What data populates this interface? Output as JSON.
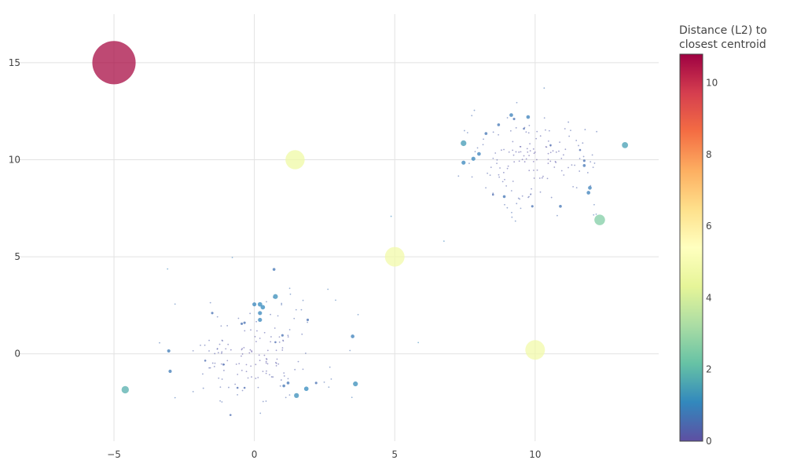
{
  "chart_data": {
    "type": "scatter",
    "title": "",
    "xlabel": "",
    "ylabel": "",
    "xlim": [
      -8.5,
      14.4
    ],
    "ylim": [
      -4.5,
      17.5
    ],
    "x_ticks": [
      -5,
      0,
      5,
      10
    ],
    "x_tick_labels": [
      "−5",
      "0",
      "5",
      "10"
    ],
    "y_ticks": [
      0,
      5,
      10,
      15
    ],
    "y_tick_labels": [
      "0",
      "5",
      "10",
      "15"
    ],
    "grid": true,
    "colorscale": "Spectral (reversed)",
    "colorbar": {
      "title_lines": [
        "Distance (L2) to",
        "closest centroid"
      ],
      "range": [
        0,
        10.8
      ],
      "ticks": [
        0,
        2,
        4,
        6,
        8,
        10
      ],
      "tick_labels": [
        "0",
        "2",
        "4",
        "6",
        "8",
        "10"
      ],
      "colors_low_to_high": [
        "#5e4fa2",
        "#3288bd",
        "#66c2a5",
        "#abdda4",
        "#e6f598",
        "#ffffbf",
        "#fee08b",
        "#fdae61",
        "#f46d43",
        "#d53e4f",
        "#9e0142"
      ]
    },
    "series": [
      {
        "marker_size_encodes": "distance",
        "points": [
          {
            "x": -5.0,
            "y": 15.0,
            "d": 10.6
          },
          {
            "x": 1.45,
            "y": 10.0,
            "d": 4.7
          },
          {
            "x": 5.0,
            "y": 5.0,
            "d": 4.8
          },
          {
            "x": 10.0,
            "y": 0.2,
            "d": 4.8
          },
          {
            "x": 12.3,
            "y": 6.9,
            "d": 2.6
          },
          {
            "x": -4.6,
            "y": -1.85,
            "d": 1.8
          },
          {
            "x": 13.2,
            "y": 10.75,
            "d": 1.5
          },
          {
            "x": 7.45,
            "y": 10.85,
            "d": 1.4
          },
          {
            "x": 0.75,
            "y": 2.95,
            "d": 1.2
          },
          {
            "x": 3.6,
            "y": -1.55,
            "d": 1.2
          },
          {
            "x": 1.5,
            "y": -2.15,
            "d": 1.2
          },
          {
            "x": 1.85,
            "y": -1.8,
            "d": 1.1
          },
          {
            "x": 0.2,
            "y": 2.55,
            "d": 1.1
          },
          {
            "x": 0.3,
            "y": 2.4,
            "d": 1.1
          },
          {
            "x": 0.0,
            "y": 2.55,
            "d": 1.0
          },
          {
            "x": 0.2,
            "y": 2.1,
            "d": 1.0
          },
          {
            "x": 0.2,
            "y": 1.75,
            "d": 1.0
          },
          {
            "x": 7.8,
            "y": 10.05,
            "d": 1.0
          },
          {
            "x": 7.45,
            "y": 9.85,
            "d": 1.0
          },
          {
            "x": 8.0,
            "y": 10.3,
            "d": 0.9
          },
          {
            "x": 9.15,
            "y": 12.3,
            "d": 0.9
          },
          {
            "x": 9.75,
            "y": 12.2,
            "d": 0.9
          },
          {
            "x": 11.9,
            "y": 8.3,
            "d": 0.9
          },
          {
            "x": 11.95,
            "y": 8.55,
            "d": 0.9
          },
          {
            "x": 3.5,
            "y": 0.9,
            "d": 0.9
          },
          {
            "x": -3.05,
            "y": 0.15,
            "d": 0.8
          },
          {
            "x": -3.0,
            "y": -0.9,
            "d": 0.8
          },
          {
            "x": 1.2,
            "y": -1.5,
            "d": 0.7
          },
          {
            "x": 1.05,
            "y": -1.65,
            "d": 0.7
          },
          {
            "x": 0.7,
            "y": 4.35,
            "d": 0.7
          },
          {
            "x": 8.9,
            "y": 8.1,
            "d": 0.7
          },
          {
            "x": 10.9,
            "y": 7.6,
            "d": 0.7
          },
          {
            "x": 8.25,
            "y": 11.35,
            "d": 0.7
          },
          {
            "x": 8.7,
            "y": 11.8,
            "d": 0.7
          },
          {
            "x": 11.75,
            "y": 9.7,
            "d": 0.7
          },
          {
            "x": -0.45,
            "y": 1.55,
            "d": 0.6
          },
          {
            "x": -0.35,
            "y": 1.6,
            "d": 0.6
          },
          {
            "x": -1.5,
            "y": 2.1,
            "d": 0.6
          },
          {
            "x": 1.0,
            "y": 0.95,
            "d": 0.6
          },
          {
            "x": 1.9,
            "y": 1.75,
            "d": 0.6
          },
          {
            "x": 2.2,
            "y": -1.5,
            "d": 0.6
          },
          {
            "x": 9.9,
            "y": 7.6,
            "d": 0.6
          },
          {
            "x": 11.75,
            "y": 9.95,
            "d": 0.6
          },
          {
            "x": 9.25,
            "y": 12.1,
            "d": 0.6
          },
          {
            "x": -0.6,
            "y": -1.75,
            "d": 0.5
          },
          {
            "x": -0.35,
            "y": -1.75,
            "d": 0.5
          },
          {
            "x": -0.85,
            "y": -3.15,
            "d": 0.5
          },
          {
            "x": -1.1,
            "y": -0.55,
            "d": 0.5
          },
          {
            "x": -1.75,
            "y": -0.35,
            "d": 0.5
          },
          {
            "x": 0.75,
            "y": 0.6,
            "d": 0.5
          },
          {
            "x": 8.5,
            "y": 8.2,
            "d": 0.5
          },
          {
            "x": 9.6,
            "y": 11.6,
            "d": 0.5
          },
          {
            "x": 11.6,
            "y": 10.5,
            "d": 0.5
          },
          {
            "x": 10.55,
            "y": 10.75,
            "d": 0.5
          }
        ]
      }
    ]
  }
}
